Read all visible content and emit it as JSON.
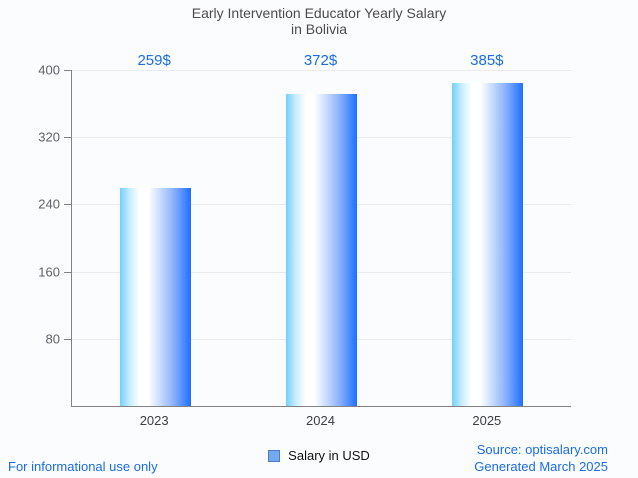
{
  "title": {
    "line1": "Early Intervention Educator Yearly Salary",
    "line2": "in Bolivia"
  },
  "chart_data": {
    "type": "bar",
    "title": "Early Intervention Educator Yearly Salary in Bolivia",
    "categories": [
      "2023",
      "2024",
      "2025"
    ],
    "values": [
      259,
      372,
      385
    ],
    "value_labels": [
      "259$",
      "372$",
      "385$"
    ],
    "xlabel": "",
    "ylabel": "",
    "ylim": [
      0,
      400
    ],
    "yticks": [
      80,
      160,
      240,
      320,
      400
    ],
    "grid": true,
    "legend_position": "bottom",
    "legend": [
      {
        "label": "Salary in USD",
        "swatch_color": "#74a7f0"
      }
    ],
    "bar_gradient": [
      "#74cffa",
      "#ffffff",
      "#1e6fff"
    ]
  },
  "footer": {
    "disclaimer": "For informational use only",
    "source": "Source: optisalary.com",
    "generated": "Generated March 2025"
  },
  "colors": {
    "accent_blue": "#1a6ce8",
    "title_gray": "#4c4c4c",
    "axis_gray": "#828282",
    "background": "#fbfcfe"
  }
}
